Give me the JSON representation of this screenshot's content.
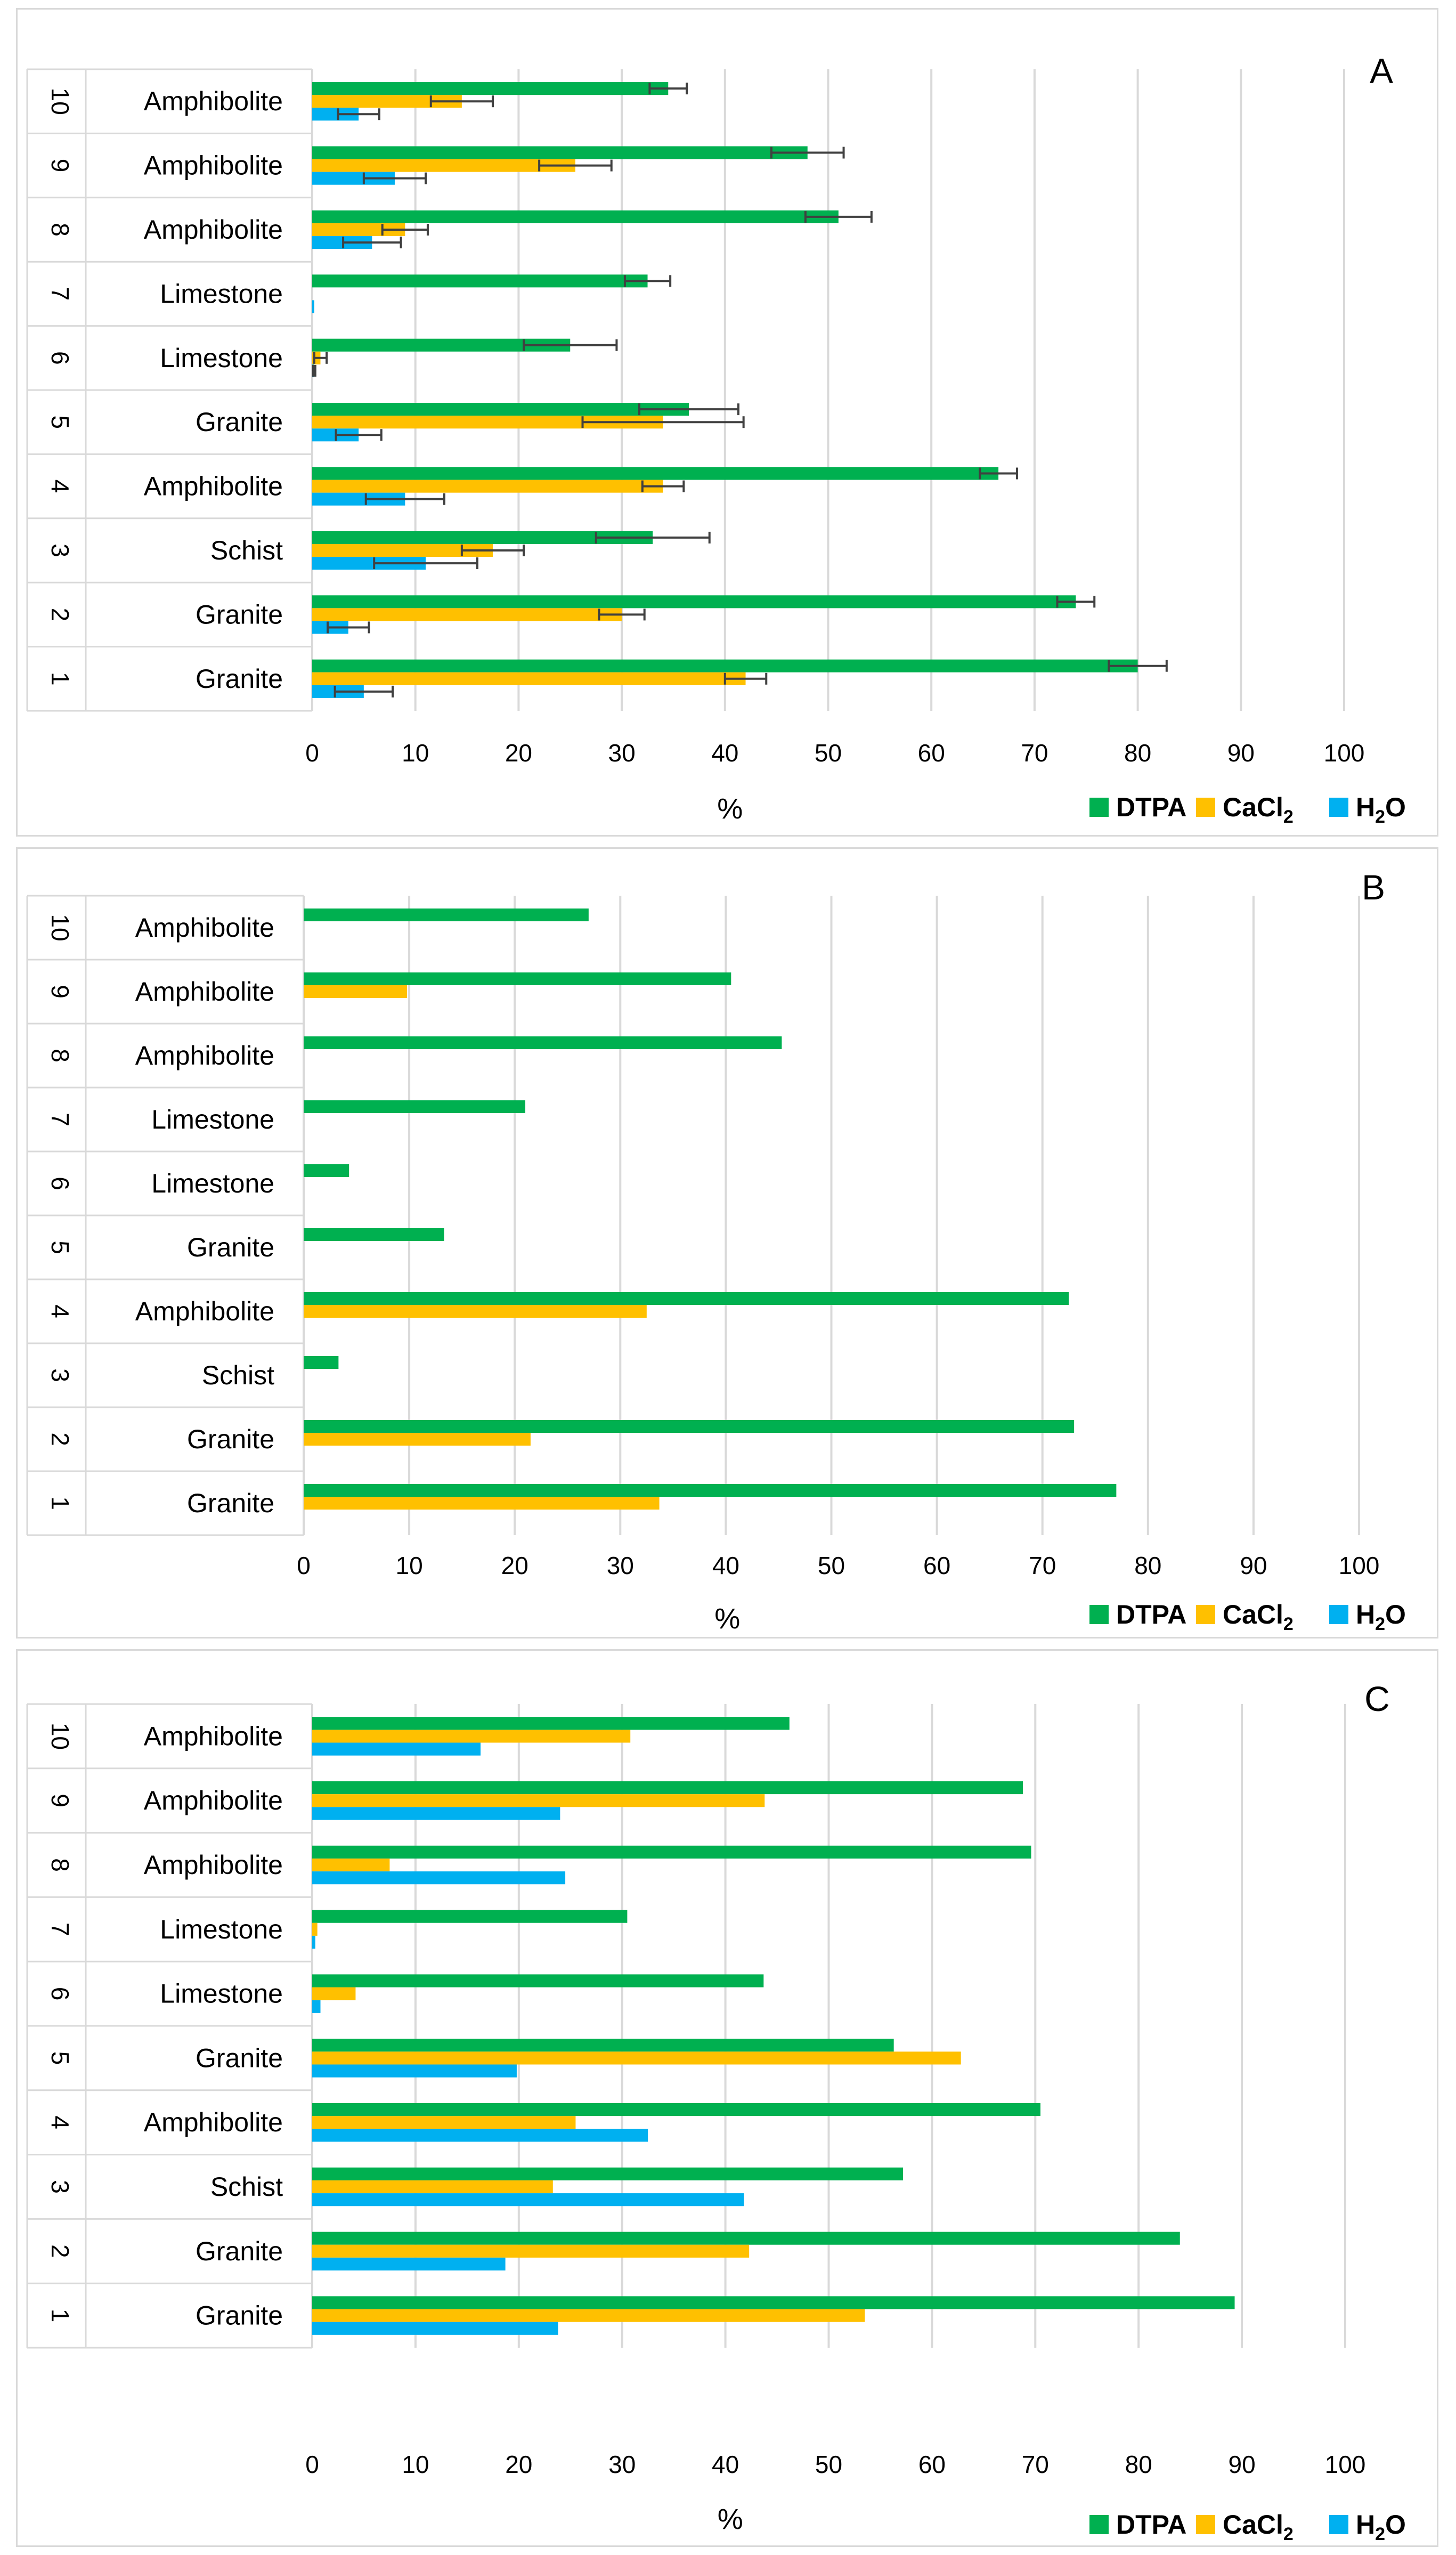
{
  "legend": {
    "dtpa": "DTPA",
    "cacl_main": "CaCl",
    "cacl_sub": "2",
    "h2o_h": "H",
    "h2o_sub": "2",
    "h2o_o": "O"
  },
  "colors": {
    "dtpa": "#00b050",
    "cacl": "#ffc000",
    "h2o": "#00b0f0",
    "grid": "#d9d9d9",
    "error": "#404040"
  },
  "chart_data": [
    {
      "type": "bar",
      "orientation": "horizontal",
      "panel_label": "A",
      "xlabel": "%",
      "xlim": [
        0,
        100
      ],
      "xticks": [
        0,
        10,
        20,
        30,
        40,
        50,
        60,
        70,
        80,
        90,
        100
      ],
      "categories": [
        "1",
        "2",
        "3",
        "4",
        "5",
        "6",
        "7",
        "8",
        "9",
        "10"
      ],
      "rock_types": [
        "Granite",
        "Granite",
        "Schist",
        "Amphibolite",
        "Granite",
        "Limestone",
        "Limestone",
        "Amphibolite",
        "Amphibolite",
        "Amphibolite"
      ],
      "series": [
        {
          "name": "DTPA",
          "values": [
            80,
            74,
            33,
            66.5,
            36.5,
            25,
            32.5,
            51,
            48,
            34.5
          ],
          "errors": [
            2.8,
            1.8,
            5.5,
            1.8,
            4.8,
            4.5,
            2.2,
            3.2,
            3.5,
            1.8
          ]
        },
        {
          "name": "CaCl2",
          "values": [
            42,
            30,
            17.5,
            34,
            34,
            0.8,
            0,
            9,
            25.5,
            14.5
          ],
          "errors": [
            2,
            2.2,
            3,
            2,
            7.8,
            0.6,
            0,
            2.2,
            3.5,
            3
          ]
        },
        {
          "name": "H2O",
          "values": [
            5,
            3.5,
            11,
            9,
            4.5,
            0.2,
            0.2,
            5.8,
            8,
            4.5
          ],
          "errors": [
            2.8,
            2,
            5,
            3.8,
            2.2,
            0.1,
            0,
            2.8,
            3,
            2
          ]
        }
      ]
    },
    {
      "type": "bar",
      "orientation": "horizontal",
      "panel_label": "B",
      "xlabel": "%",
      "xlim": [
        0,
        100
      ],
      "xticks": [
        0,
        10,
        20,
        30,
        40,
        50,
        60,
        70,
        80,
        90,
        100
      ],
      "categories": [
        "1",
        "2",
        "3",
        "4",
        "5",
        "6",
        "7",
        "8",
        "9",
        "10"
      ],
      "rock_types": [
        "Granite",
        "Granite",
        "Schist",
        "Amphibolite",
        "Granite",
        "Limestone",
        "Limestone",
        "Amphibolite",
        "Amphibolite",
        "Amphibolite"
      ],
      "series": [
        {
          "name": "DTPA",
          "values": [
            77,
            73,
            3.3,
            72.5,
            13.3,
            4.3,
            21,
            45.3,
            40.5,
            27
          ]
        },
        {
          "name": "CaCl2",
          "values": [
            33.7,
            21.5,
            0,
            32.5,
            0,
            0,
            0,
            0,
            9.8,
            0
          ]
        },
        {
          "name": "H2O",
          "values": [
            0,
            0,
            0,
            0,
            0,
            0,
            0,
            0,
            0,
            0
          ]
        }
      ]
    },
    {
      "type": "bar",
      "orientation": "horizontal",
      "panel_label": "C",
      "xlabel": "%",
      "xlim": [
        0,
        100
      ],
      "xticks": [
        0,
        10,
        20,
        30,
        40,
        50,
        60,
        70,
        80,
        90,
        100
      ],
      "categories": [
        "1",
        "2",
        "3",
        "4",
        "5",
        "6",
        "7",
        "8",
        "9",
        "10"
      ],
      "rock_types": [
        "Granite",
        "Granite",
        "Schist",
        "Amphibolite",
        "Granite",
        "Limestone",
        "Limestone",
        "Amphibolite",
        "Amphibolite",
        "Amphibolite"
      ],
      "series": [
        {
          "name": "DTPA",
          "values": [
            89.3,
            84,
            57.2,
            70.5,
            56.3,
            43.7,
            30.5,
            69.6,
            68.8,
            46.2
          ]
        },
        {
          "name": "CaCl2",
          "values": [
            53.5,
            42.3,
            23.3,
            25.5,
            62.8,
            4.2,
            0.5,
            7.5,
            43.8,
            30.8
          ]
        },
        {
          "name": "H2O",
          "values": [
            23.8,
            18.7,
            41.8,
            32.5,
            19.8,
            0.8,
            0.3,
            24.5,
            24,
            16.3
          ]
        }
      ]
    }
  ]
}
